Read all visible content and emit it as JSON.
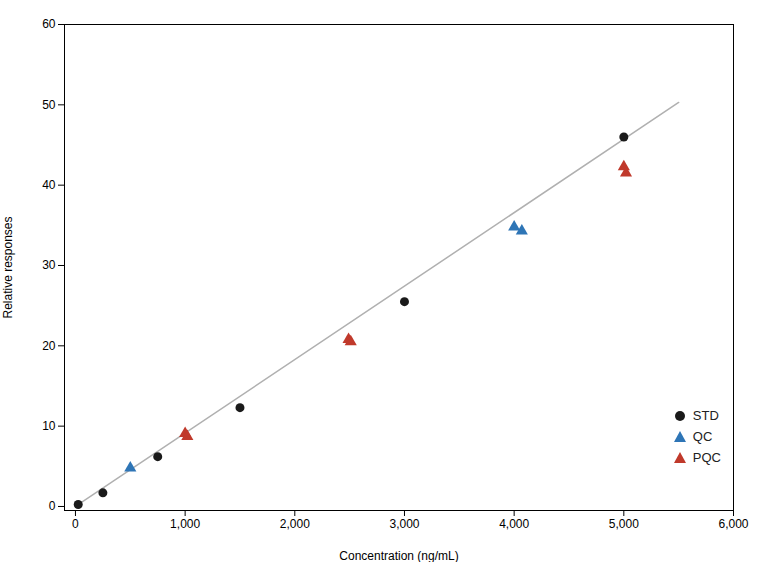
{
  "chart_data": {
    "type": "scatter",
    "xlabel": "Concentration (ng/mL)",
    "ylabel": "Relative responses",
    "xlim": [
      -100,
      6000
    ],
    "ylim": [
      -0.5,
      60
    ],
    "xticks": [
      0,
      {
        "value": 1000,
        "label": "1,000"
      },
      {
        "value": 2000,
        "label": "2,000"
      },
      {
        "value": 3000,
        "label": "3,000"
      },
      {
        "value": 4000,
        "label": "4,000"
      },
      {
        "value": 5000,
        "label": "5,000"
      },
      {
        "value": 6000,
        "label": "6,000"
      }
    ],
    "yticks": [
      0,
      10,
      20,
      30,
      40,
      50,
      60
    ],
    "legend": "lower right",
    "grid": false,
    "series": [
      {
        "type": "line",
        "color": "#b0b0b0",
        "x": [
          0,
          5500
        ],
        "values": [
          0.0,
          50.3
        ]
      },
      {
        "name": "STD",
        "type": "scatter",
        "marker": "circle",
        "color": "#1a1a1a",
        "x": [
          25,
          250,
          750,
          1500,
          3000,
          5000
        ],
        "values": [
          0.25,
          1.7,
          6.2,
          12.3,
          25.5,
          46.0
        ]
      },
      {
        "name": "QC",
        "type": "scatter",
        "marker": "triangle",
        "color": "#2e75b6",
        "x": [
          500,
          4000,
          4070
        ],
        "values": [
          4.8,
          34.8,
          34.3
        ]
      },
      {
        "name": "PQC",
        "type": "scatter",
        "marker": "triangle",
        "color": "#c0392b",
        "x": [
          1000,
          1020,
          2490,
          2510,
          5000,
          5020
        ],
        "values": [
          9.1,
          8.7,
          20.8,
          20.5,
          42.3,
          41.5
        ]
      }
    ]
  }
}
